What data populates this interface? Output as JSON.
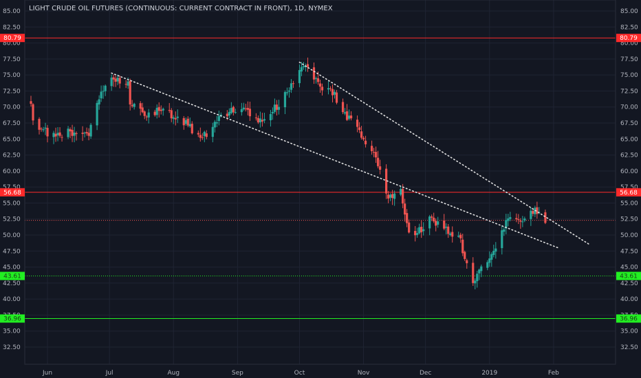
{
  "title": "LIGHT CRUDE OIL FUTURES (CONTINUOUS: CURRENT CONTRACT IN FRONT), 1D, NYMEX",
  "colors": {
    "background": "#131722",
    "grid": "#1f2433",
    "text": "#b2b5be",
    "up": "#26a69a",
    "down": "#ef5350",
    "resistance": "#ff2a2a",
    "support": "#22ee22",
    "trend": "#e0e0e0"
  },
  "chart_data": {
    "type": "candlestick",
    "title": "LIGHT CRUDE OIL FUTURES (CONTINUOUS: CURRENT CONTRACT IN FRONT), 1D, NYMEX",
    "x_range": [
      "2018-05-21",
      "2019-03-03"
    ],
    "ylim": [
      32.5,
      85.0
    ],
    "grid": true,
    "y_ticks": [
      32.5,
      35.0,
      37.5,
      40.0,
      42.5,
      45.0,
      47.5,
      50.0,
      52.5,
      55.0,
      57.5,
      60.0,
      62.5,
      65.0,
      67.5,
      70.0,
      72.5,
      75.0,
      77.5,
      80.0,
      82.5,
      85.0
    ],
    "x_ticks": [
      {
        "date": "2018-06-01",
        "label": "Jun"
      },
      {
        "date": "2018-07-01",
        "label": "Jul"
      },
      {
        "date": "2018-08-01",
        "label": "Aug"
      },
      {
        "date": "2018-09-01",
        "label": "Sep"
      },
      {
        "date": "2018-10-01",
        "label": "Oct"
      },
      {
        "date": "2018-11-01",
        "label": "Nov"
      },
      {
        "date": "2018-12-01",
        "label": "Dec"
      },
      {
        "date": "2019-01-01",
        "label": "2019"
      },
      {
        "date": "2019-02-01",
        "label": "Feb"
      }
    ],
    "horizontal_levels": [
      {
        "value": 80.79,
        "label": "80.79",
        "color": "#ff2a2a",
        "style": "solid"
      },
      {
        "value": 56.68,
        "label": "56.68",
        "color": "#ff2a2a",
        "style": "solid"
      },
      {
        "value": 52.3,
        "label": "",
        "color": "#ef5350",
        "style": "dotted"
      },
      {
        "value": 43.61,
        "label": "43.61",
        "color": "#22ee22",
        "style": "dotted"
      },
      {
        "value": 36.96,
        "label": "36.96",
        "color": "#22ee22",
        "style": "solid"
      }
    ],
    "trendlines": [
      {
        "from": {
          "date": "2018-07-02",
          "value": 75.3
        },
        "to": {
          "date": "2019-02-04",
          "value": 47.9
        }
      },
      {
        "from": {
          "date": "2018-10-01",
          "value": 77.0
        },
        "to": {
          "date": "2019-02-18",
          "value": 48.6
        }
      }
    ],
    "anchors": [
      {
        "date": "2018-05-24",
        "close": 70.5
      },
      {
        "date": "2018-05-25",
        "close": 67.9
      },
      {
        "date": "2018-05-29",
        "close": 66.6
      },
      {
        "date": "2018-06-05",
        "close": 65.4
      },
      {
        "date": "2018-06-12",
        "close": 66.2
      },
      {
        "date": "2018-06-18",
        "close": 65.8
      },
      {
        "date": "2018-06-21",
        "close": 65.5
      },
      {
        "date": "2018-06-27",
        "close": 72.4
      },
      {
        "date": "2018-07-03",
        "close": 74.3
      },
      {
        "date": "2018-07-10",
        "close": 74.0
      },
      {
        "date": "2018-07-11",
        "close": 70.4
      },
      {
        "date": "2018-07-18",
        "close": 68.6
      },
      {
        "date": "2018-07-25",
        "close": 69.4
      },
      {
        "date": "2018-08-03",
        "close": 68.5
      },
      {
        "date": "2018-08-15",
        "close": 65.2
      },
      {
        "date": "2018-08-24",
        "close": 68.8
      },
      {
        "date": "2018-09-04",
        "close": 69.9
      },
      {
        "date": "2018-09-11",
        "close": 67.6
      },
      {
        "date": "2018-09-17",
        "close": 68.9
      },
      {
        "date": "2018-09-25",
        "close": 72.3
      },
      {
        "date": "2018-10-03",
        "close": 76.4
      },
      {
        "date": "2018-10-08",
        "close": 74.3
      },
      {
        "date": "2018-10-11",
        "close": 73.2
      },
      {
        "date": "2018-10-16",
        "close": 72.9
      },
      {
        "date": "2018-10-22",
        "close": 69.2
      },
      {
        "date": "2018-10-29",
        "close": 66.9
      },
      {
        "date": "2018-11-05",
        "close": 63.1
      },
      {
        "date": "2018-11-09",
        "close": 60.2
      },
      {
        "date": "2018-11-13",
        "close": 55.7
      },
      {
        "date": "2018-11-19",
        "close": 57.2
      },
      {
        "date": "2018-11-23",
        "close": 50.4
      },
      {
        "date": "2018-11-30",
        "close": 50.9
      },
      {
        "date": "2018-12-03",
        "close": 52.9
      },
      {
        "date": "2018-12-10",
        "close": 51.0
      },
      {
        "date": "2018-12-17",
        "close": 49.9
      },
      {
        "date": "2018-12-21",
        "close": 45.6
      },
      {
        "date": "2018-12-24",
        "close": 42.5
      },
      {
        "date": "2018-12-27",
        "close": 44.6
      },
      {
        "date": "2019-01-04",
        "close": 47.9
      },
      {
        "date": "2019-01-10",
        "close": 52.6
      },
      {
        "date": "2019-01-16",
        "close": 52.1
      },
      {
        "date": "2019-01-21",
        "close": 53.8
      },
      {
        "date": "2019-01-25",
        "close": 53.6
      },
      {
        "date": "2019-01-28",
        "close": 51.9
      }
    ]
  }
}
